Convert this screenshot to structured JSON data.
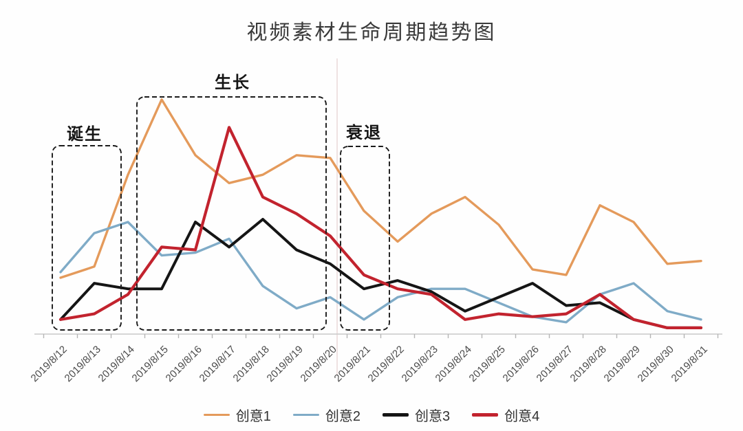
{
  "chart_data": {
    "type": "line",
    "title": "视频素材生命周期趋势图",
    "categories": [
      "2019/8/12",
      "2019/8/13",
      "2019/8/14",
      "2019/8/15",
      "2019/8/16",
      "2019/8/17",
      "2019/8/18",
      "2019/8/19",
      "2019/8/20",
      "2019/8/21",
      "2019/8/22",
      "2019/8/23",
      "2019/8/24",
      "2019/8/25",
      "2019/8/26",
      "2019/8/27",
      "2019/8/28",
      "2019/8/29",
      "2019/8/30",
      "2019/8/31"
    ],
    "series": [
      {
        "name": "创意1",
        "color": "#E49A5B",
        "values": [
          20,
          24,
          57,
          84,
          64,
          54,
          57,
          64,
          63,
          44,
          33,
          43,
          49,
          39,
          23,
          21,
          46,
          40,
          25,
          26
        ]
      },
      {
        "name": "创意2",
        "color": "#7FABC7",
        "values": [
          22,
          36,
          40,
          28,
          29,
          34,
          17,
          9,
          13,
          5,
          13,
          16,
          16,
          11,
          6,
          4,
          14,
          18,
          8,
          5
        ]
      },
      {
        "name": "创意3",
        "color": "#151515",
        "values": [
          5,
          18,
          16,
          16,
          40,
          31,
          41,
          30,
          25,
          16,
          19,
          15,
          8,
          13,
          18,
          10,
          11,
          5,
          2,
          2
        ]
      },
      {
        "name": "创意4",
        "color": "#C2232E",
        "values": [
          5,
          7,
          14,
          31,
          30,
          74,
          49,
          43,
          35,
          21,
          16,
          14,
          5,
          7,
          6,
          7,
          14,
          5,
          2,
          2
        ]
      }
    ],
    "xlabel": "",
    "ylabel": "",
    "ylim": [
      0,
      100
    ],
    "grid": false,
    "legend_position": "bottom",
    "annotations": [
      {
        "label": "诞生"
      },
      {
        "label": "生长"
      },
      {
        "label": "衰退"
      }
    ],
    "colors": {
      "axis": "#c9c9c9",
      "tick": "#b5b5b5",
      "tick_label": "#4a4a4a",
      "annotation_box": "#1a1a1a"
    }
  }
}
